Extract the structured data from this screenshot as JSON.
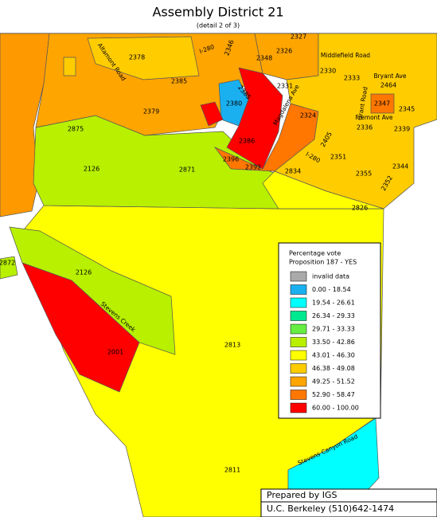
{
  "header": {
    "title": "Assembly District 21",
    "subtitle": "(detail 2 of 3)"
  },
  "precinct_labels": [
    "2378",
    "2385",
    "2379",
    "2380",
    "2386",
    "2875",
    "2126",
    "2871",
    "2396",
    "2392",
    "2834",
    "2826",
    "2872",
    "2126",
    "2001",
    "2813",
    "2811",
    "2330",
    "2333",
    "2464",
    "2347",
    "2345",
    "2339",
    "2336",
    "2324",
    "2351",
    "2355",
    "2344",
    "2352",
    "2405",
    "2348",
    "2326",
    "2327",
    "2331",
    "2346",
    "2385"
  ],
  "road_labels": [
    "Altamont Road",
    "I-280",
    "I-280",
    "Middlefield Road",
    "Bryant Ave",
    "Fremont Ave",
    "Magdalena Ave",
    "Grant Road",
    "Stevens Creek",
    "Stevens Canyon Road"
  ],
  "legend": {
    "title": "Percentage vote",
    "subtitle": "Proposition 187 - YES",
    "items": [
      {
        "label": "invalid data",
        "color": "#aaaaaa"
      },
      {
        "label": "0.00 -  18.54",
        "color": "#1ab0f0"
      },
      {
        "label": "19.54 -  26.61",
        "color": "#00ffff"
      },
      {
        "label": "26.34 -  29.33",
        "color": "#00e890"
      },
      {
        "label": "29.71 -  33.33",
        "color": "#66ee44"
      },
      {
        "label": "33.50 -  42.86",
        "color": "#b8f000"
      },
      {
        "label": "43.01 -  46.30",
        "color": "#ffff00"
      },
      {
        "label": "46.38 -  49.08",
        "color": "#ffcc00"
      },
      {
        "label": "49.25 -  51.52",
        "color": "#ffa500"
      },
      {
        "label": "52.90 -  58.47",
        "color": "#ff7700"
      },
      {
        "label": "60.00 - 100.00",
        "color": "#ff0000"
      }
    ]
  },
  "footer": {
    "line1": "Prepared by IGS",
    "line2": "U.C. Berkeley (510)642-1474"
  }
}
